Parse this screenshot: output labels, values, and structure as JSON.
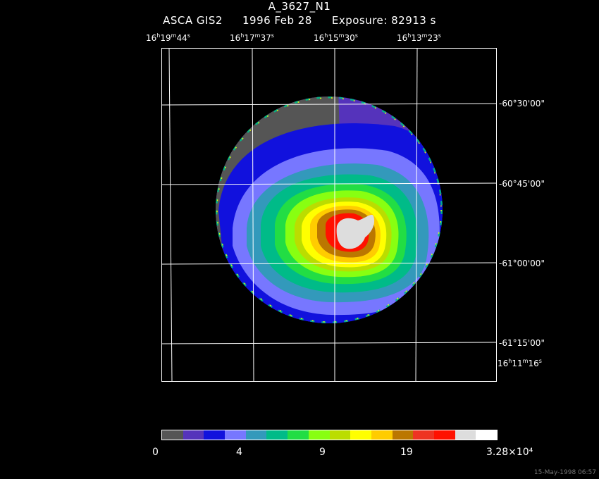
{
  "header": {
    "title": "A_3627_N1",
    "instrument": "ASCA GIS2",
    "date": "1996 Feb 28",
    "exposure": "Exposure: 82913 s"
  },
  "axes": {
    "ra_ticks": [
      {
        "h": "16",
        "m": "19",
        "s": "44"
      },
      {
        "h": "16",
        "m": "17",
        "s": "37"
      },
      {
        "h": "16",
        "m": "15",
        "s": "30"
      },
      {
        "h": "16",
        "m": "13",
        "s": "23"
      },
      {
        "h": "16",
        "m": "11",
        "s": "16"
      }
    ],
    "dec_ticks": [
      "-60°30'00\"",
      "-60°45'00\"",
      "-61°00'00\"",
      "-61°15'00\""
    ]
  },
  "colorbar": {
    "labels": [
      "0",
      "4",
      "9",
      "19",
      "3.28×10⁴"
    ],
    "colors": [
      "#555555",
      "#5533bb",
      "#1111dd",
      "#7777ff",
      "#3399bb",
      "#00bb88",
      "#22dd44",
      "#88ff11",
      "#bbdd00",
      "#ffff00",
      "#ffcc00",
      "#bb7700",
      "#ee3322",
      "#ff1100",
      "#dddddd",
      "#ffffff"
    ]
  },
  "timestamp": "15-May-1998 06:57"
}
